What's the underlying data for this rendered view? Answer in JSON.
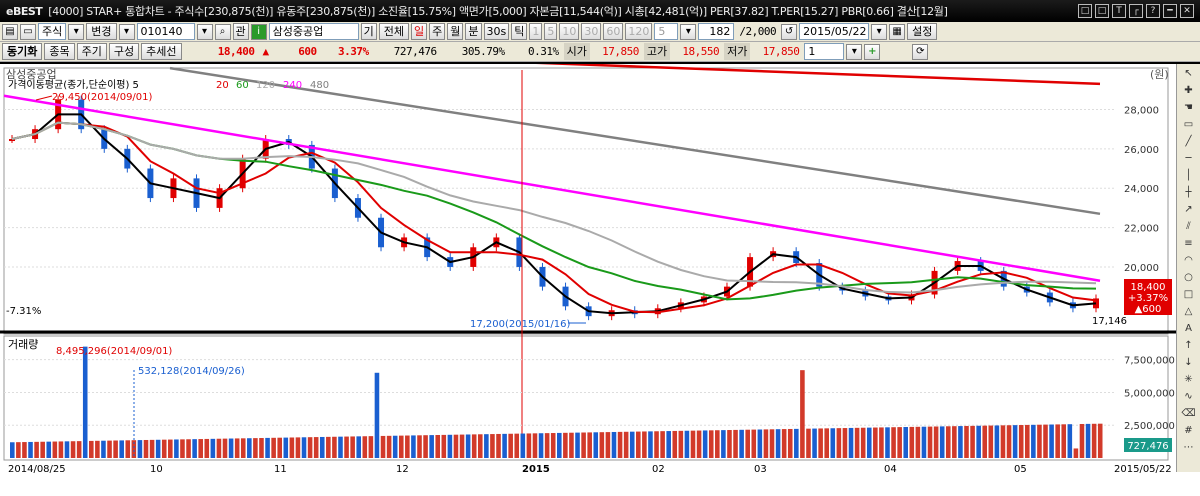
{
  "titlebar": {
    "logo": "eBEST",
    "text": "[4000] STAR+ 통합차트 - 주식수[230,875(천)] 유동주[230,875(천)] 소진율[15.75%] 액면가[5,000] 자본금[11,544(억)] 시총[42,481(억)] PER[37.82] T.PER[15.27] PBR[0.66] 결산[12월]",
    "buttons": [
      "□",
      "□",
      "T",
      "┌",
      "?",
      "━",
      "✕"
    ]
  },
  "toolbar1": {
    "market": "주식",
    "change": "변경",
    "code": "010140",
    "kwan": "관",
    "stock_name": "삼성중공업",
    "gi": "기",
    "all": "전체",
    "periods": [
      "일",
      "주",
      "월",
      "분",
      "30s",
      "틱"
    ],
    "minutes": [
      "1",
      "5",
      "10",
      "30",
      "60",
      "120"
    ],
    "n5": "5",
    "count": "182",
    "max": "/2,000",
    "date": "2015/05/22",
    "settings": "설정"
  },
  "toolbar2": {
    "sync": "동기화",
    "item": "종목",
    "cycle": "주기",
    "compose": "구성",
    "trend": "추세선",
    "price": "18,400",
    "arrow": "▲",
    "change": "600",
    "change_pct": "3.37%",
    "volume": "727,476",
    "vol_pct": "305.79%",
    "turnover": "0.31%",
    "open_label": "시가",
    "open": "17,850",
    "high_label": "고가",
    "high": "18,550",
    "low_label": "저가",
    "low": "17,850",
    "spin": "1"
  },
  "chart": {
    "title": "삼성중공업",
    "unit": "(원)",
    "ma_legend_prefix": "가격이동평균(종가,단순이평) 5",
    "ma_periods": [
      "20",
      "60",
      "120",
      "240",
      "480"
    ],
    "ma_colors": [
      "#000000",
      "#e00000",
      "#1a9a1a",
      "#aaaaaa",
      "#ff00ff",
      "#808080",
      "#e00000"
    ],
    "high_annotation": "29,450(2014/09/01)",
    "low_annotation": "17,200(2015/01/16)",
    "pct_label": "-7.31%",
    "last_label": "17,146",
    "price_box": [
      "18,400",
      "+3.37%",
      "▲600"
    ],
    "price_ticks": [
      "28,000",
      "26,000",
      "24,000",
      "22,000",
      "20,000"
    ],
    "volume_title": "거래량",
    "vol_high_annotation": "8,495,296(2014/09/01)",
    "vol_low_annotation": "532,128(2014/09/26)",
    "volume_ticks": [
      "7,500,000",
      "5,000,000",
      "2,500,000"
    ],
    "volume_last": "727,476",
    "date_labels": [
      "2014/08/25",
      "10",
      "11",
      "12",
      "2015",
      "02",
      "03",
      "04",
      "05",
      "2015/05/22"
    ]
  },
  "chart_data": {
    "type": "candlestick",
    "title": "삼성중공업",
    "x": [
      "2014/08/25",
      "2015/05/22"
    ],
    "ylim": [
      17000,
      29600
    ],
    "close_series_approx": [
      26500,
      27000,
      28500,
      27000,
      26000,
      25000,
      23500,
      24500,
      23000,
      24000,
      25500,
      26500,
      26200,
      25000,
      23500,
      22500,
      21000,
      21500,
      20500,
      20000,
      21000,
      21500,
      20000,
      19000,
      18000,
      17500,
      17800,
      17600,
      17900,
      18200,
      18500,
      19000,
      20500,
      20800,
      20200,
      19000,
      18800,
      18500,
      18300,
      18600,
      19800,
      20300,
      19800,
      19000,
      18700,
      18200,
      17900,
      18400
    ],
    "volume_peak": 8495296,
    "volume_last": 727476
  }
}
